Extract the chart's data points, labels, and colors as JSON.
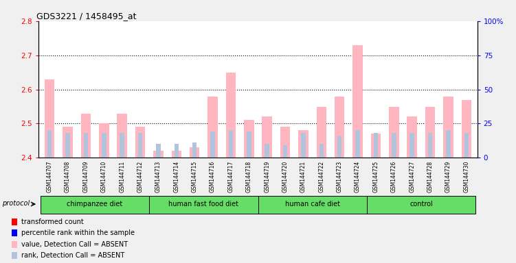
{
  "title": "GDS3221 / 1458495_at",
  "samples": [
    "GSM144707",
    "GSM144708",
    "GSM144709",
    "GSM144710",
    "GSM144711",
    "GSM144712",
    "GSM144713",
    "GSM144714",
    "GSM144715",
    "GSM144716",
    "GSM144717",
    "GSM144718",
    "GSM144719",
    "GSM144720",
    "GSM144721",
    "GSM144722",
    "GSM144723",
    "GSM144724",
    "GSM144725",
    "GSM144726",
    "GSM144727",
    "GSM144728",
    "GSM144729",
    "GSM144730"
  ],
  "values": [
    2.63,
    2.49,
    2.53,
    2.5,
    2.53,
    2.49,
    2.42,
    2.42,
    2.43,
    2.58,
    2.65,
    2.51,
    2.52,
    2.49,
    2.48,
    2.55,
    2.58,
    2.73,
    2.47,
    2.55,
    2.52,
    2.55,
    2.58,
    2.57
  ],
  "ranks": [
    20,
    18,
    18,
    18,
    18,
    18,
    10,
    10,
    11,
    19,
    20,
    19,
    10,
    9,
    18,
    10,
    16,
    20,
    18,
    18,
    18,
    18,
    20,
    18
  ],
  "groups": [
    {
      "name": "chimpanzee diet",
      "start": 0,
      "end": 6
    },
    {
      "name": "human fast food diet",
      "start": 6,
      "end": 12
    },
    {
      "name": "human cafe diet",
      "start": 12,
      "end": 18
    },
    {
      "name": "control",
      "start": 18,
      "end": 24
    }
  ],
  "ylim_left": [
    2.4,
    2.8
  ],
  "ylim_right": [
    0,
    100
  ],
  "yticks_left": [
    2.4,
    2.5,
    2.6,
    2.7,
    2.8
  ],
  "yticks_right": [
    0,
    25,
    50,
    75,
    100
  ],
  "bar_color_value": "#FFB6C1",
  "bar_color_rank": "#B0C4DE",
  "bar_width": 0.55,
  "rank_bar_width": 0.25,
  "background_color": "#f0f0f0",
  "plot_bg": "#ffffff",
  "grid_lines": [
    2.5,
    2.6,
    2.7
  ],
  "legend_items": [
    {
      "label": "transformed count",
      "color": "#FF0000"
    },
    {
      "label": "percentile rank within the sample",
      "color": "#0000FF"
    },
    {
      "label": "value, Detection Call = ABSENT",
      "color": "#FFB6C1"
    },
    {
      "label": "rank, Detection Call = ABSENT",
      "color": "#B0C4DE"
    }
  ]
}
